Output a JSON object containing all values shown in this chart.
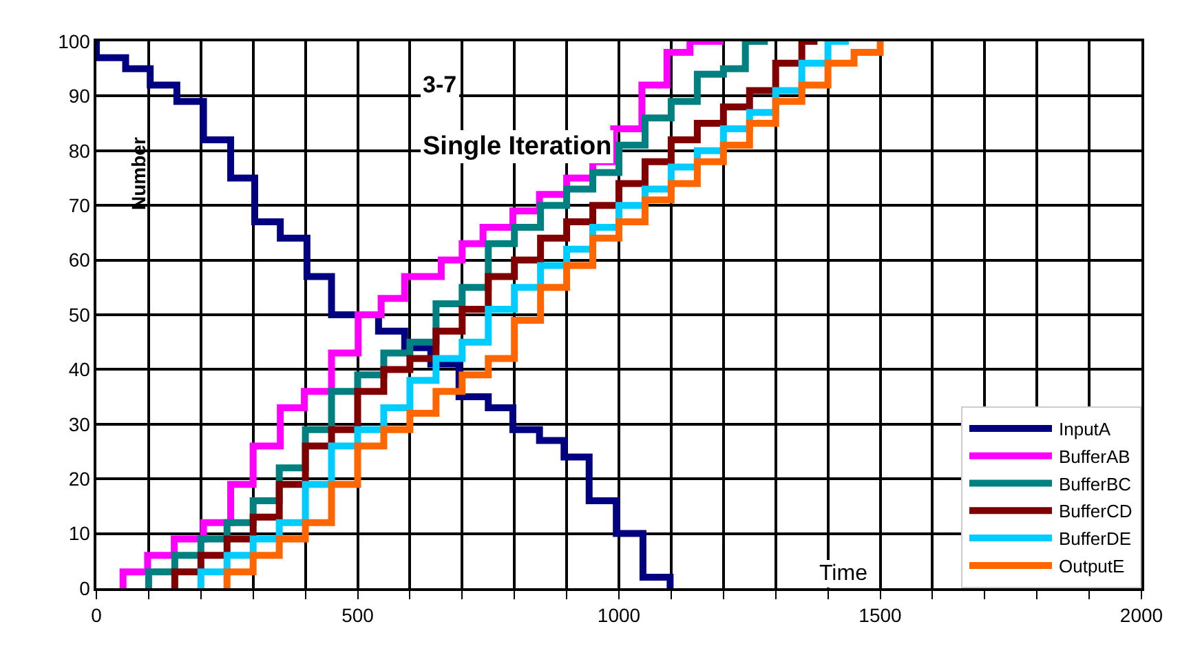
{
  "chart_data": {
    "type": "step",
    "title": "3-7",
    "subtitle": "Single Iteration",
    "xlabel": "Time",
    "ylabel": "Number",
    "xlim": [
      0,
      2000
    ],
    "ylim": [
      0,
      100
    ],
    "xticks": [
      0,
      {
        "value": 100,
        "label": null
      },
      {
        "value": 200,
        "label": null
      },
      {
        "value": 300,
        "label": null
      },
      {
        "value": 400,
        "label": null
      },
      500,
      {
        "value": 600,
        "label": null
      },
      {
        "value": 700,
        "label": null
      },
      {
        "value": 800,
        "label": null
      },
      {
        "value": 900,
        "label": null
      },
      1000,
      {
        "value": 1100,
        "label": null
      },
      {
        "value": 1200,
        "label": null
      },
      {
        "value": 1300,
        "label": null
      },
      {
        "value": 1400,
        "label": null
      },
      1500,
      {
        "value": 1600,
        "label": null
      },
      {
        "value": 1700,
        "label": null
      },
      {
        "value": 1800,
        "label": null
      },
      {
        "value": 1900,
        "label": null
      },
      2000
    ],
    "yticks": [
      0,
      10,
      20,
      30,
      40,
      50,
      60,
      70,
      80,
      90,
      100
    ],
    "grid": true,
    "legend": "bottom right",
    "series": [
      {
        "name": "InputA",
        "color": "#000080",
        "x": [
          0,
          0,
          56,
          103,
          154,
          205,
          257,
          303,
          352,
          403,
          450,
          540,
          590,
          640,
          694,
          750,
          797,
          848,
          895,
          943,
          995,
          1046,
          1098
        ],
        "values": [
          100,
          97,
          95,
          92,
          89,
          82,
          75,
          67,
          64,
          57,
          50,
          47,
          44,
          41,
          35,
          33,
          29,
          27,
          24,
          16,
          10,
          2,
          0
        ]
      },
      {
        "name": "BufferAB",
        "color": "#ff00ff",
        "x": [
          51,
          51,
          98,
          149,
          205,
          257,
          300,
          352,
          398,
          450,
          501,
          545,
          590,
          660,
          700,
          740,
          797,
          848,
          900,
          950,
          990,
          1044,
          1092,
          1136,
          1200
        ],
        "values": [
          0,
          3,
          6,
          9,
          12,
          19,
          26,
          33,
          36,
          43,
          50,
          53,
          57,
          60,
          63,
          66,
          69,
          72,
          75,
          78,
          84,
          92,
          98,
          100,
          100
        ]
      },
      {
        "name": "BufferBC",
        "color": "#008080",
        "x": [
          100,
          100,
          150,
          200,
          250,
          300,
          350,
          400,
          450,
          500,
          550,
          600,
          650,
          700,
          750,
          800,
          850,
          900,
          950,
          1000,
          1050,
          1100,
          1150,
          1200,
          1242,
          1285
        ],
        "values": [
          0,
          3,
          6,
          9,
          12,
          16,
          22,
          29,
          36,
          39,
          43,
          45,
          52,
          55,
          63,
          66,
          70,
          73,
          76,
          81,
          86,
          89,
          94,
          95,
          100,
          100
        ]
      },
      {
        "name": "BufferCD",
        "color": "#800000",
        "x": [
          150,
          150,
          200,
          250,
          300,
          350,
          400,
          450,
          500,
          550,
          600,
          650,
          700,
          750,
          800,
          850,
          900,
          950,
          1000,
          1050,
          1100,
          1150,
          1200,
          1250,
          1300,
          1350,
          1380
        ],
        "values": [
          0,
          3,
          6,
          9,
          13,
          19,
          26,
          29,
          36,
          40,
          42,
          47,
          51,
          57,
          60,
          64,
          67,
          70,
          74,
          78,
          82,
          85,
          88,
          91,
          96,
          100,
          100
        ]
      },
      {
        "name": "BufferDE",
        "color": "#00ccff",
        "x": [
          200,
          200,
          250,
          300,
          350,
          400,
          450,
          500,
          550,
          600,
          650,
          700,
          750,
          800,
          850,
          900,
          950,
          1000,
          1050,
          1100,
          1150,
          1200,
          1250,
          1300,
          1350,
          1400,
          1440
        ],
        "values": [
          0,
          3,
          6,
          9,
          12,
          19,
          26,
          29,
          33,
          38,
          42,
          45,
          51,
          55,
          59,
          62,
          66,
          70,
          73,
          77,
          80,
          84,
          87,
          91,
          96,
          100,
          100
        ]
      },
      {
        "name": "OutputE",
        "color": "#ff6600",
        "x": [
          250,
          250,
          300,
          350,
          400,
          450,
          500,
          550,
          600,
          650,
          700,
          750,
          800,
          850,
          900,
          950,
          1000,
          1050,
          1100,
          1150,
          1200,
          1250,
          1300,
          1350,
          1400,
          1450,
          1500
        ],
        "values": [
          0,
          3,
          6,
          9,
          12,
          19,
          26,
          29,
          32,
          36,
          39,
          42,
          49,
          55,
          59,
          64,
          67,
          71,
          74,
          78,
          81,
          85,
          89,
          92,
          96,
          98,
          100
        ]
      }
    ]
  }
}
